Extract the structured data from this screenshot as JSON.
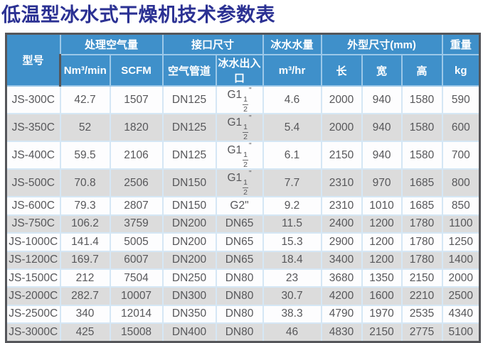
{
  "page_title": "低温型冰水式干燥机技术参数表",
  "colors": {
    "title_text": "#2b3193",
    "header_bg": "#3f90ca",
    "header_text": "#ffffff",
    "stripe_row_bg": "#dcdcdc",
    "body_text": "#57575a",
    "outer_border": "#55565a",
    "grid_line": "#d5e7f5"
  },
  "table": {
    "header": {
      "model": "型号",
      "air_capacity": "处理空气量",
      "air_unit_nm3": "Nm³/min",
      "air_unit_scfm": "SCFM",
      "interface_size": "接口尺寸",
      "air_pipe": "空气管道",
      "water_port": "冰水出入口",
      "chilled_water": "冰水水量",
      "chilled_water_unit": "m³/hr",
      "dimensions": "外型尺寸(mm)",
      "dim_length": "长",
      "dim_width": "宽",
      "dim_height": "高",
      "weight": "重量",
      "weight_unit": "kg"
    },
    "column_keys": [
      "model",
      "nm3_min",
      "scfm",
      "air_pipe",
      "water_port",
      "water_flow",
      "length",
      "width",
      "height",
      "weight"
    ],
    "rows": [
      {
        "model": "JS-300C",
        "nm3_min": "42.7",
        "scfm": "1507",
        "air_pipe": "DN125",
        "water_port": {
          "pre": "G1",
          "num": "1",
          "den": "2",
          "suf": "\""
        },
        "water_flow": "4.6",
        "length": "2000",
        "width": "940",
        "height": "1580",
        "weight": "590"
      },
      {
        "model": "JS-350C",
        "nm3_min": "52",
        "scfm": "1820",
        "air_pipe": "DN125",
        "water_port": {
          "pre": "G1",
          "num": "1",
          "den": "2",
          "suf": "\""
        },
        "water_flow": "5.4",
        "length": "2000",
        "width": "940",
        "height": "1580",
        "weight": "600"
      },
      {
        "model": "JS-400C",
        "nm3_min": "59.5",
        "scfm": "2106",
        "air_pipe": "DN125",
        "water_port": {
          "pre": "G1",
          "num": "1",
          "den": "2",
          "suf": "\""
        },
        "water_flow": "6.1",
        "length": "2150",
        "width": "940",
        "height": "1580",
        "weight": "700"
      },
      {
        "model": "JS-500C",
        "nm3_min": "70.8",
        "scfm": "2506",
        "air_pipe": "DN150",
        "water_port": {
          "pre": "G1",
          "num": "1",
          "den": "2",
          "suf": "\""
        },
        "water_flow": "7.7",
        "length": "2310",
        "width": "970",
        "height": "1685",
        "weight": "800"
      },
      {
        "model": "JS-600C",
        "nm3_min": "79.3",
        "scfm": "2807",
        "air_pipe": "DN150",
        "water_port": "G2\"",
        "water_flow": "9.2",
        "length": "2310",
        "width": "1010",
        "height": "1685",
        "weight": "850"
      },
      {
        "model": "JS-750C",
        "nm3_min": "106.2",
        "scfm": "3759",
        "air_pipe": "DN200",
        "water_port": "DN65",
        "water_flow": "11.5",
        "length": "2400",
        "width": "1200",
        "height": "1780",
        "weight": "1100"
      },
      {
        "model": "JS-1000C",
        "nm3_min": "141.4",
        "scfm": "5005",
        "air_pipe": "DN200",
        "water_port": "DN65",
        "water_flow": "15.3",
        "length": "2900",
        "width": "1200",
        "height": "1780",
        "weight": "1250"
      },
      {
        "model": "JS-1200C",
        "nm3_min": "169.7",
        "scfm": "6007",
        "air_pipe": "DN200",
        "water_port": "DN65",
        "water_flow": "18.4",
        "length": "3400",
        "width": "1200",
        "height": "1780",
        "weight": "1400"
      },
      {
        "model": "JS-1500C",
        "nm3_min": "212",
        "scfm": "7504",
        "air_pipe": "DN250",
        "water_port": "DN80",
        "water_flow": "23",
        "length": "3680",
        "width": "1350",
        "height": "2150",
        "weight": "2000"
      },
      {
        "model": "JS-2000C",
        "nm3_min": "282.7",
        "scfm": "10007",
        "air_pipe": "DN300",
        "water_port": "DN80",
        "water_flow": "30.7",
        "length": "4200",
        "width": "1600",
        "height": "2210",
        "weight": "2500"
      },
      {
        "model": "JS-2500C",
        "nm3_min": "340",
        "scfm": "12014",
        "air_pipe": "DN350",
        "water_port": "DN80",
        "water_flow": "38.3",
        "length": "4790",
        "width": "1970",
        "height": "2535",
        "weight": "4340"
      },
      {
        "model": "JS-3000C",
        "nm3_min": "425",
        "scfm": "15008",
        "air_pipe": "DN400",
        "water_port": "DN80",
        "water_flow": "46",
        "length": "4830",
        "width": "2150",
        "height": "2775",
        "weight": "5100"
      }
    ]
  }
}
